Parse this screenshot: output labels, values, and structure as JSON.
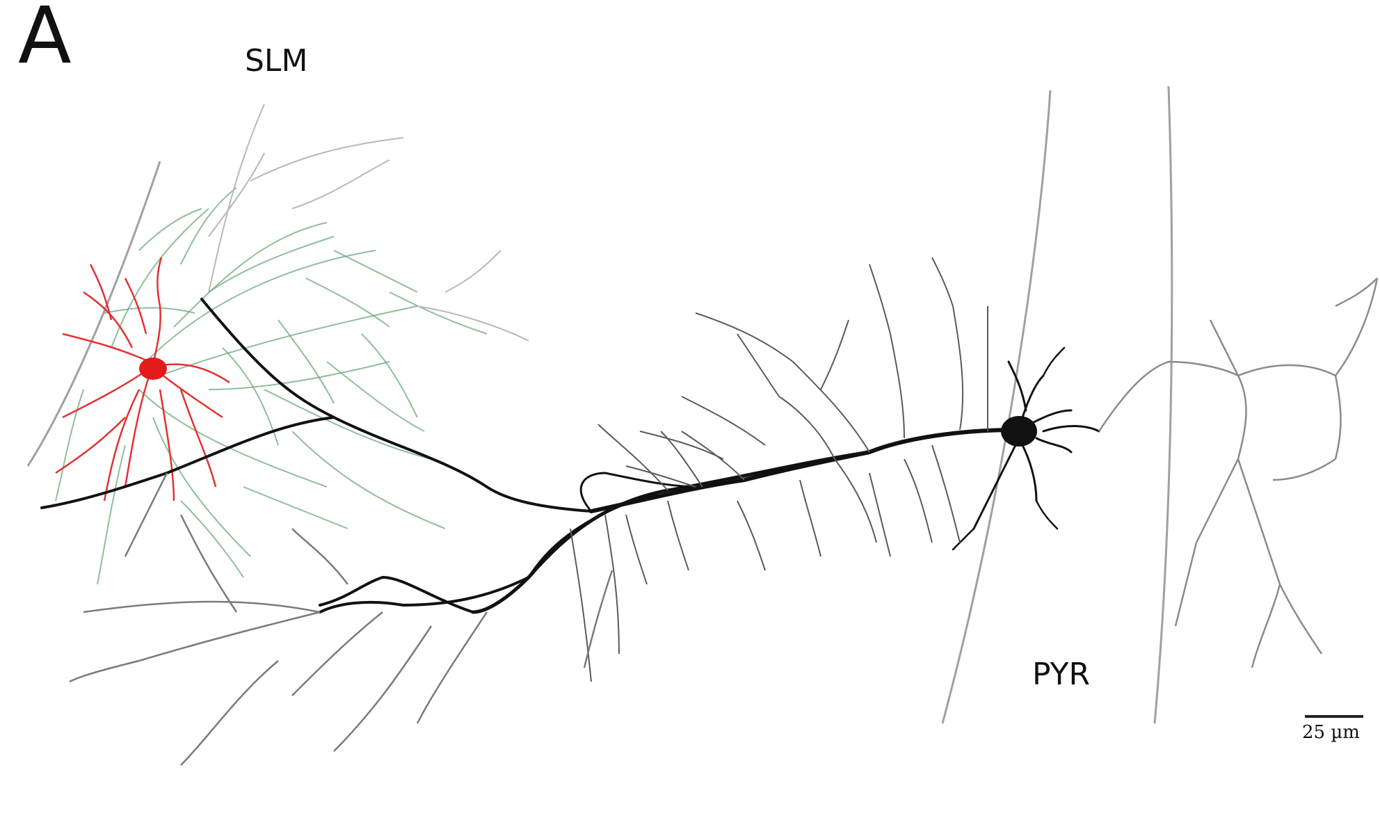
{
  "figure": {
    "panel_letter": "A",
    "region_labels": {
      "top": "SLM",
      "bottom": "PYR"
    },
    "scale_bar": {
      "label": "25 µm"
    },
    "colors": {
      "background": "#ffffff",
      "pyramidal_neuron": "#111111",
      "interneuron_dendrites": "#e31b1b",
      "interneuron_axon": "#3f8f55",
      "layer_boundaries": "#9a9a9a",
      "thin_branches": "#8a8a8a"
    }
  }
}
